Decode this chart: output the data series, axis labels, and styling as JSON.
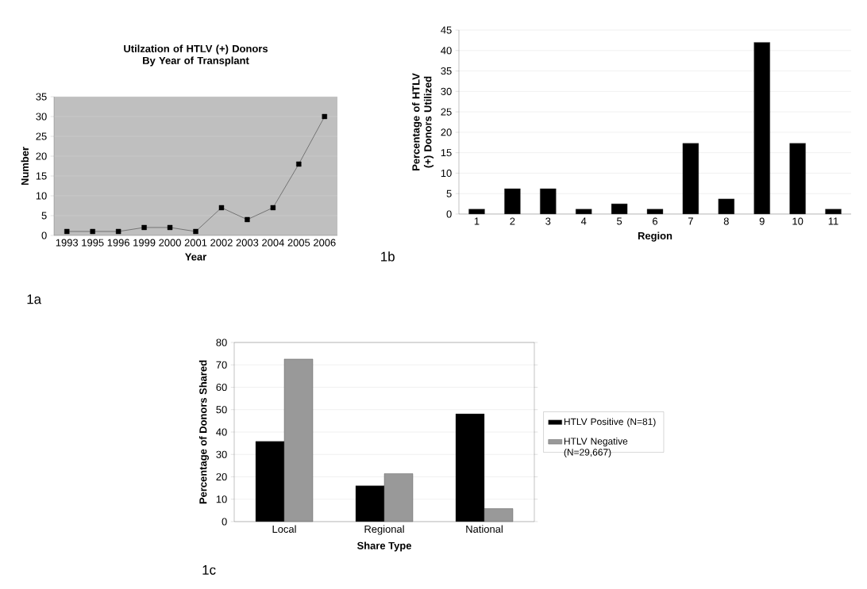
{
  "chart_data": [
    {
      "type": "line",
      "title": "Utilzation of HTLV (+) Donors By Year of Transplant",
      "xlabel": "Year",
      "ylabel": "Number",
      "categories": [
        "1993",
        "1995",
        "1996",
        "1999",
        "2000",
        "2001",
        "2002",
        "2003",
        "2004",
        "2005",
        "2006"
      ],
      "values": [
        1,
        1,
        1,
        2,
        2,
        1,
        7,
        4,
        7,
        18,
        30
      ],
      "color": "#000000",
      "ylim": [
        0,
        35
      ],
      "yticks": [
        0,
        5,
        10,
        15,
        20,
        25,
        30,
        35
      ],
      "grid": "y",
      "marker": "square",
      "annotations": [
        "1a"
      ]
    },
    {
      "type": "bar",
      "xlabel": "Region",
      "ylabel": "Percentage of HTLV (+) Donors Utilized",
      "categories": [
        "1",
        "2",
        "3",
        "4",
        "5",
        "6",
        "7",
        "8",
        "9",
        "10",
        "11"
      ],
      "values": [
        1.2,
        6.2,
        6.2,
        1.2,
        2.5,
        1.2,
        17.3,
        3.7,
        42,
        17.3,
        1.2
      ],
      "color": "#000000",
      "ylim": [
        0,
        45
      ],
      "yticks": [
        0,
        5,
        10,
        15,
        20,
        25,
        30,
        35,
        40,
        45
      ],
      "grid": "y",
      "annotations": [
        "1b"
      ]
    },
    {
      "type": "bar",
      "xlabel": "Share Type",
      "ylabel": "Percentage of Donors Shared",
      "categories": [
        "Local",
        "Regional",
        "National"
      ],
      "series": [
        {
          "name": "HTLV Positive (N=81)",
          "color": "#000000",
          "values": [
            35.8,
            16.0,
            48.1
          ]
        },
        {
          "name": "HTLV Negative (N=29,667)",
          "color": "#999999",
          "values": [
            72.6,
            21.4,
            5.8
          ]
        }
      ],
      "ylim": [
        0,
        80
      ],
      "yticks": [
        0,
        10,
        20,
        30,
        40,
        50,
        60,
        70,
        80
      ],
      "grid": "y",
      "legend": "right",
      "annotations": [
        "1c"
      ]
    }
  ]
}
